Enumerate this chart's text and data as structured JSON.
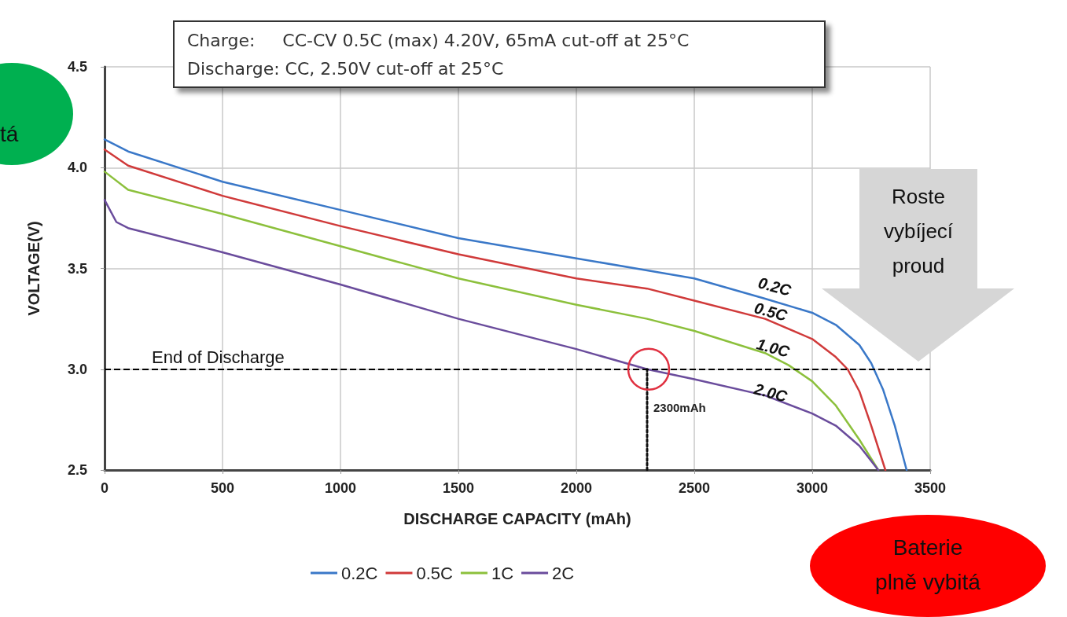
{
  "chart_data": {
    "type": "line",
    "xlabel": "DISCHARGE CAPACITY (mAh)",
    "ylabel": "VOLTAGE(V)",
    "xlim": [
      0,
      3500
    ],
    "xticks": [
      0,
      500,
      1000,
      1500,
      2000,
      2500,
      3000,
      3500
    ],
    "ylim": [
      2.5,
      4.5
    ],
    "yticks": [
      {
        "value": 2.5,
        "label": "2.5"
      },
      {
        "value": 3,
        "label": "3.0"
      },
      {
        "value": 3.5,
        "label": "3.5"
      },
      {
        "value": 4,
        "label": "4.0"
      },
      {
        "value": 4.5,
        "label": "4.5"
      }
    ],
    "grid": true,
    "legend": "bottom",
    "marker": "none",
    "line_style": "solid",
    "series": [
      {
        "name": "0.2C",
        "color": "#3a78c8",
        "x": [
          0,
          100,
          500,
          1000,
          1500,
          2000,
          2300,
          2500,
          2800,
          3000,
          3100,
          3200,
          3250,
          3300,
          3350,
          3400
        ],
        "values": [
          4.14,
          4.08,
          3.93,
          3.79,
          3.65,
          3.55,
          3.49,
          3.45,
          3.35,
          3.28,
          3.22,
          3.12,
          3.03,
          2.9,
          2.72,
          2.5
        ]
      },
      {
        "name": "0.5C",
        "color": "#d03a3a",
        "x": [
          0,
          100,
          500,
          1000,
          1500,
          2000,
          2300,
          2500,
          2800,
          3000,
          3100,
          3150,
          3200,
          3250,
          3310
        ],
        "values": [
          4.09,
          4.01,
          3.86,
          3.71,
          3.57,
          3.45,
          3.4,
          3.34,
          3.25,
          3.15,
          3.06,
          3.0,
          2.89,
          2.72,
          2.5
        ]
      },
      {
        "name": "1C",
        "color": "#8cc03c",
        "x": [
          0,
          100,
          500,
          1000,
          1500,
          2000,
          2300,
          2500,
          2800,
          2900,
          3000,
          3100,
          3200,
          3280
        ],
        "values": [
          3.98,
          3.89,
          3.77,
          3.61,
          3.45,
          3.32,
          3.25,
          3.19,
          3.08,
          3.02,
          2.94,
          2.82,
          2.65,
          2.5
        ]
      },
      {
        "name": "2C",
        "color": "#6a4c9c",
        "x": [
          0,
          50,
          100,
          500,
          1000,
          1500,
          2000,
          2300,
          2500,
          2800,
          3000,
          3100,
          3200,
          3280
        ],
        "values": [
          3.84,
          3.73,
          3.7,
          3.58,
          3.42,
          3.25,
          3.1,
          3.0,
          2.95,
          2.87,
          2.78,
          2.72,
          2.62,
          2.5
        ]
      },
      {
        "color": "#111111",
        "line_style": "dotted",
        "x": [
          2300,
          2300
        ],
        "values": [
          2.5,
          3.0
        ]
      }
    ],
    "ref_lines": [
      {
        "axis": "y",
        "value": 3,
        "label": "End of Discharge",
        "color": "#000000",
        "line_style": "dashed"
      }
    ],
    "annotations": [
      "Charge:     CC-CV 0.5C (max) 4.20V, 65mA cut-off at 25°C",
      "Discharge: CC, 2.50V cut-off at 25°C",
      {
        "text": "2300mAh",
        "x": 2300,
        "y": 3.0
      },
      "0.2C",
      "0.5C",
      "1.0C",
      "2.0C",
      "Roste vybíjecí proud",
      "Baterie plně vybitá",
      "tá"
    ]
  }
}
